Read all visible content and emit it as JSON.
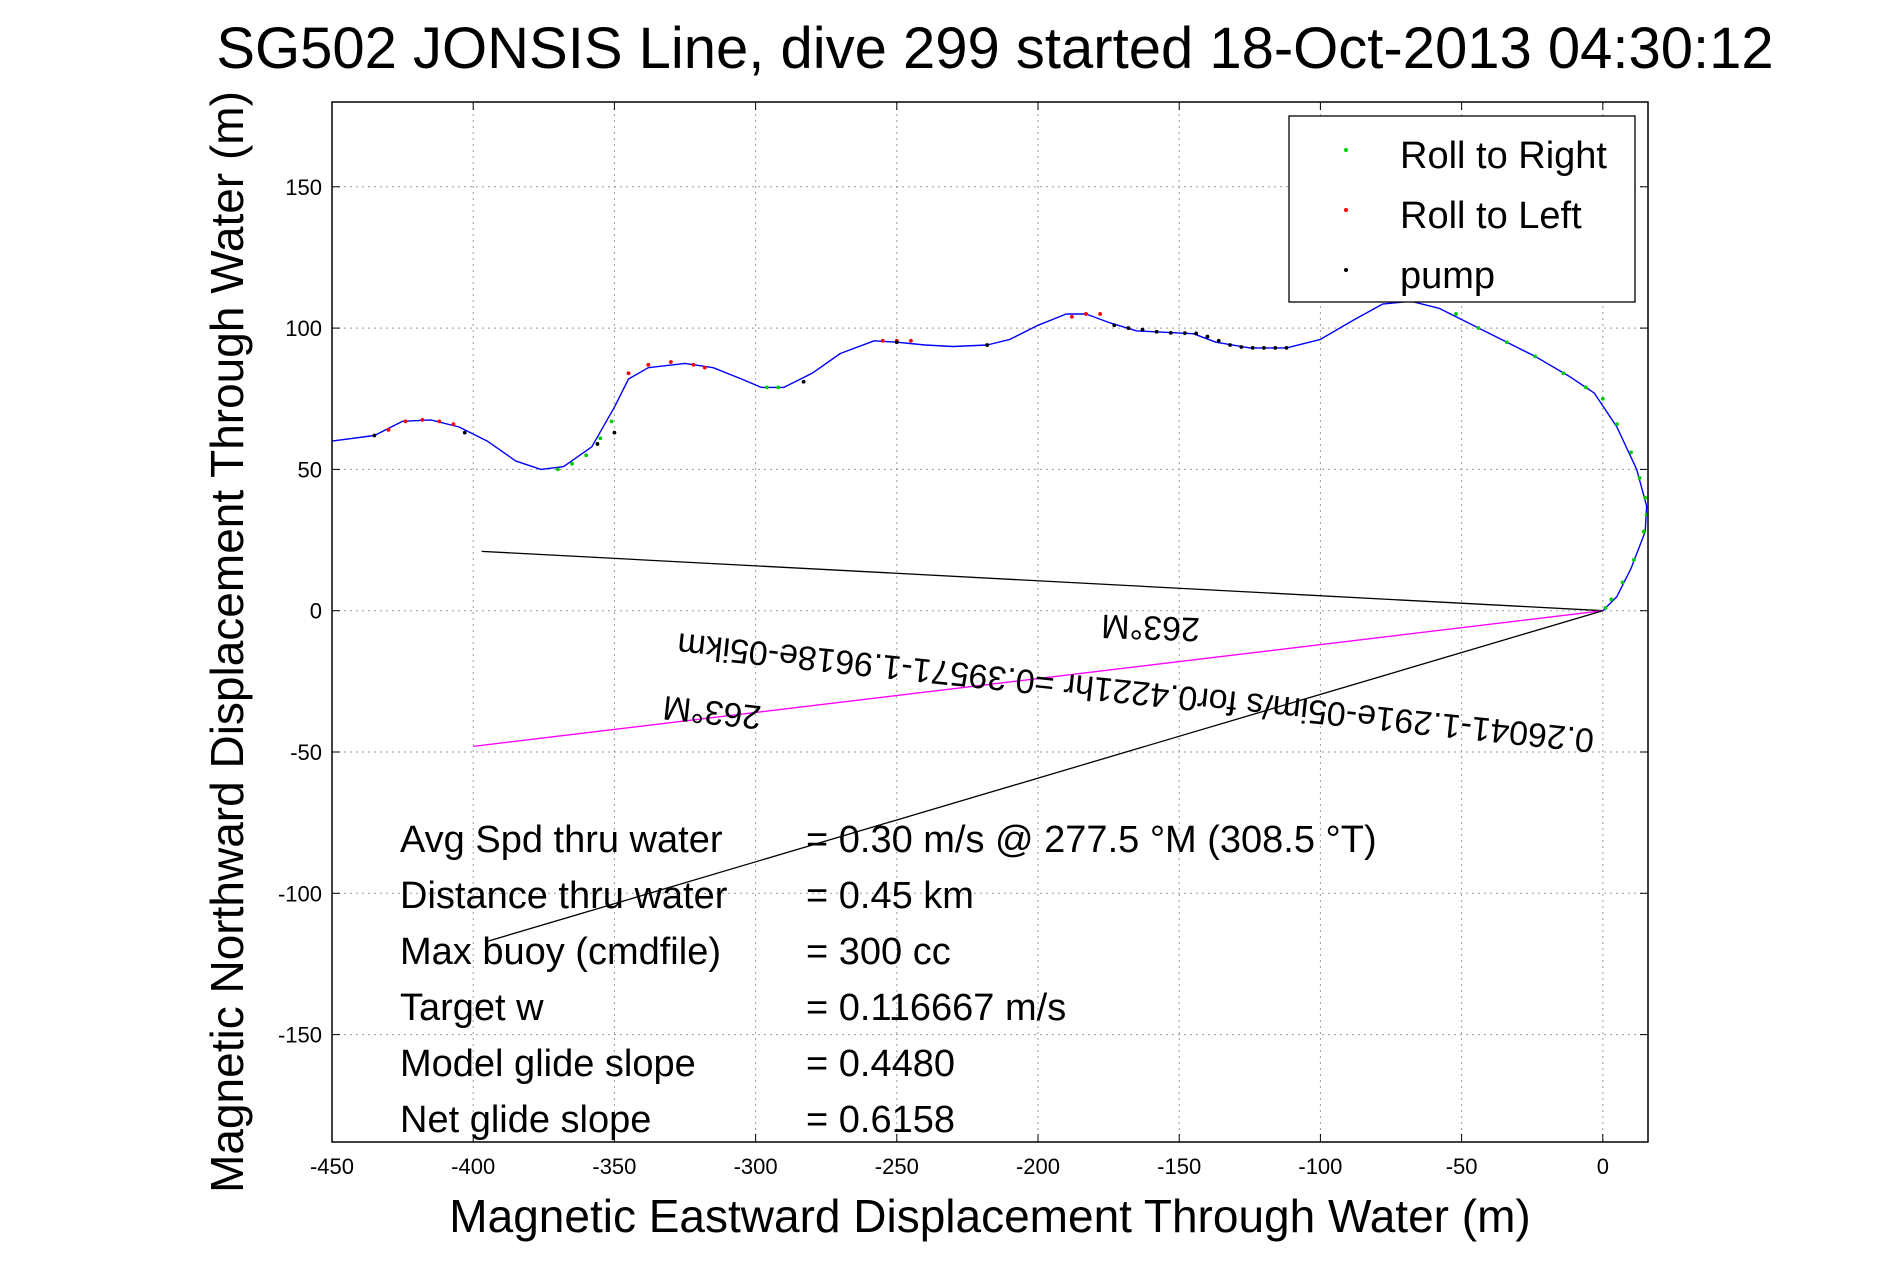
{
  "chart_data": {
    "type": "line",
    "title": "SG502 JONSIS Line, dive 299 started 18-Oct-2013 04:30:12",
    "xlabel": "Magnetic Eastward Displacement Through Water (m)",
    "ylabel": "Magnetic Northward Displacement Through Water (m)",
    "xlim": [
      -450,
      16
    ],
    "ylim": [
      -188,
      180
    ],
    "xticks": [
      -450,
      -400,
      -350,
      -300,
      -250,
      -200,
      -150,
      -100,
      -50,
      0
    ],
    "yticks": [
      -150,
      -100,
      -50,
      0,
      50,
      100,
      150
    ],
    "grid": true,
    "legend_position": "top-right",
    "legend": [
      {
        "label": "Roll to Right",
        "color": "#00cc00"
      },
      {
        "label": "Roll to Left",
        "color": "#ff0000"
      },
      {
        "label": "pump",
        "color": "#000000"
      }
    ],
    "track": {
      "color": "#0000ff",
      "x": [
        -450,
        -435,
        -425,
        -415,
        -405,
        -395,
        -385,
        -376,
        -368,
        -358,
        -350,
        -345,
        -338,
        -325,
        -315,
        -305,
        -298,
        -290,
        -280,
        -270,
        -258,
        -250,
        -240,
        -230,
        -218,
        -210,
        -200,
        -190,
        -183,
        -175,
        -165,
        -155,
        -145,
        -137,
        -125,
        -112,
        -100,
        -88,
        -78,
        -68,
        -58,
        -48,
        -36,
        -24,
        -12,
        -3,
        5,
        12,
        15.5,
        15,
        10,
        5,
        0
      ],
      "y": [
        60,
        62,
        67,
        67.5,
        65,
        60,
        53,
        50,
        51,
        58,
        72,
        82,
        86,
        87.5,
        86,
        82,
        79,
        79,
        84,
        91,
        95.5,
        95,
        94,
        93.5,
        94,
        96,
        101,
        105,
        105,
        102,
        99,
        98.5,
        98,
        95,
        93,
        93,
        96,
        103,
        108.5,
        109.5,
        107,
        102,
        96,
        90,
        83,
        77,
        65,
        50,
        37,
        28,
        15,
        5,
        0
      ]
    },
    "roll_right_points": {
      "x": [
        -370,
        -365,
        -360,
        -355,
        -351,
        -296,
        -292,
        -52,
        -44,
        -34,
        -24,
        -14,
        -6,
        0,
        5,
        10,
        13,
        15,
        15.5,
        14.5,
        11,
        7,
        3,
        1
      ],
      "y": [
        50,
        52,
        55,
        61,
        67,
        79,
        79,
        105,
        100,
        95,
        90,
        84,
        79,
        75,
        66,
        56,
        47,
        40,
        34,
        28,
        18,
        10,
        4,
        1
      ]
    },
    "roll_left_points": {
      "x": [
        -430,
        -424,
        -418,
        -412,
        -407,
        -345,
        -338,
        -330,
        -322,
        -318,
        -255,
        -250,
        -245,
        -188,
        -183,
        -178
      ],
      "y": [
        64,
        67,
        67.5,
        67,
        66,
        84,
        87,
        88,
        87,
        86,
        95.5,
        95.5,
        95.5,
        104,
        105,
        105
      ]
    },
    "pump_points": {
      "x": [
        -435,
        -403,
        -356,
        -350,
        -283,
        -250,
        -218,
        -173,
        -168,
        -163,
        -158,
        -153,
        -148,
        -144,
        -140,
        -136,
        -132,
        -128,
        -124,
        -120,
        -116,
        -112
      ],
      "y": [
        62,
        63,
        59,
        63,
        81,
        95,
        94,
        101,
        100,
        99.5,
        98.7,
        98.3,
        98.2,
        98.1,
        97,
        95.5,
        94,
        93.3,
        93,
        93,
        93,
        93
      ]
    },
    "vectors": [
      {
        "name": "current",
        "color": "#000000",
        "x": [
          0,
          -397
        ],
        "y": [
          0,
          21
        ]
      },
      {
        "name": "heading",
        "color": "#ff00ff",
        "x": [
          0,
          -400
        ],
        "y": [
          0,
          -48
        ]
      },
      {
        "name": "net",
        "color": "#000000",
        "x": [
          0,
          -395
        ],
        "y": [
          0,
          -117
        ]
      }
    ],
    "annotations": [
      {
        "text": "263°M",
        "x": -160,
        "y": -2,
        "rotation": 182
      },
      {
        "text": "0.26041-1.291e-05im/s for0.4221hr =0.39571-1.9618e-05ikm",
        "x": -165,
        "y": -25,
        "rotation": 186
      },
      {
        "text": "263°M",
        "x": -315,
        "y": -32,
        "rotation": 186
      }
    ],
    "stats": [
      {
        "label": "Avg Spd thru water",
        "value": "=  0.30 m/s @ 277.5 °M (308.5 °T)"
      },
      {
        "label": "Distance thru water",
        "value": "=  0.45 km"
      },
      {
        "label": "Max buoy (cmdfile)",
        "value": "= 300 cc"
      },
      {
        "label": "Target w",
        "value": "= 0.116667 m/s"
      },
      {
        "label": "Model glide slope",
        "value": "= 0.4480"
      },
      {
        "label": "Net glide slope",
        "value": "= 0.6158"
      }
    ]
  }
}
